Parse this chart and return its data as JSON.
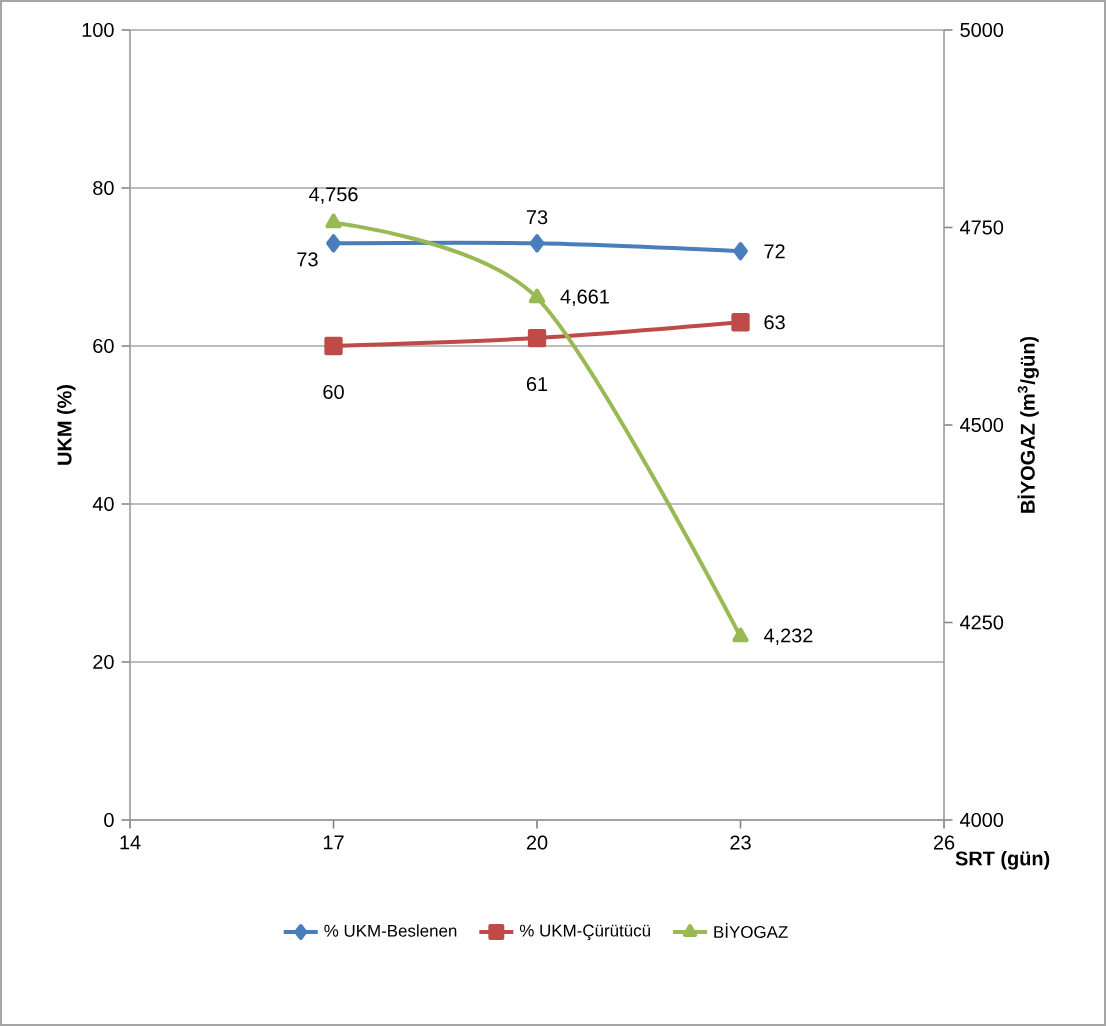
{
  "chart_data": {
    "type": "line",
    "xlabel": "SRT (gün)",
    "ylabel": "UKM (%)",
    "y2label": "BİYOGAZ (m$^{3}$/gün)",
    "x": [
      17,
      20,
      23
    ],
    "xlim": [
      14,
      26
    ],
    "xticks": [
      14,
      17,
      20,
      23,
      26
    ],
    "ylim": [
      0,
      100
    ],
    "yticks": [
      0,
      20,
      40,
      60,
      80,
      100
    ],
    "y2lim": [
      4000,
      5000
    ],
    "y2ticks": [
      4000,
      4250,
      4500,
      4750,
      5000
    ],
    "grid": "y",
    "legend": "bottom",
    "series": [
      {
        "name": "% UKM-Beslenen",
        "color": "#4a7ebb",
        "marker": "diamond",
        "values": [
          73,
          73,
          72
        ],
        "value_labels": [
          "73",
          "73",
          "72"
        ]
      },
      {
        "name": "% UKM-Çürütücü",
        "color": "#be4b48",
        "marker": "square",
        "values": [
          60,
          61,
          63
        ],
        "value_labels": [
          "60",
          "61",
          "63"
        ]
      },
      {
        "name": "BİYOGAZ",
        "color": "#98b954",
        "marker": "triangle",
        "axis": "y2",
        "values": [
          4756,
          4661,
          4232
        ],
        "value_labels": [
          "4,756",
          "4,661",
          "4,232"
        ]
      }
    ]
  }
}
